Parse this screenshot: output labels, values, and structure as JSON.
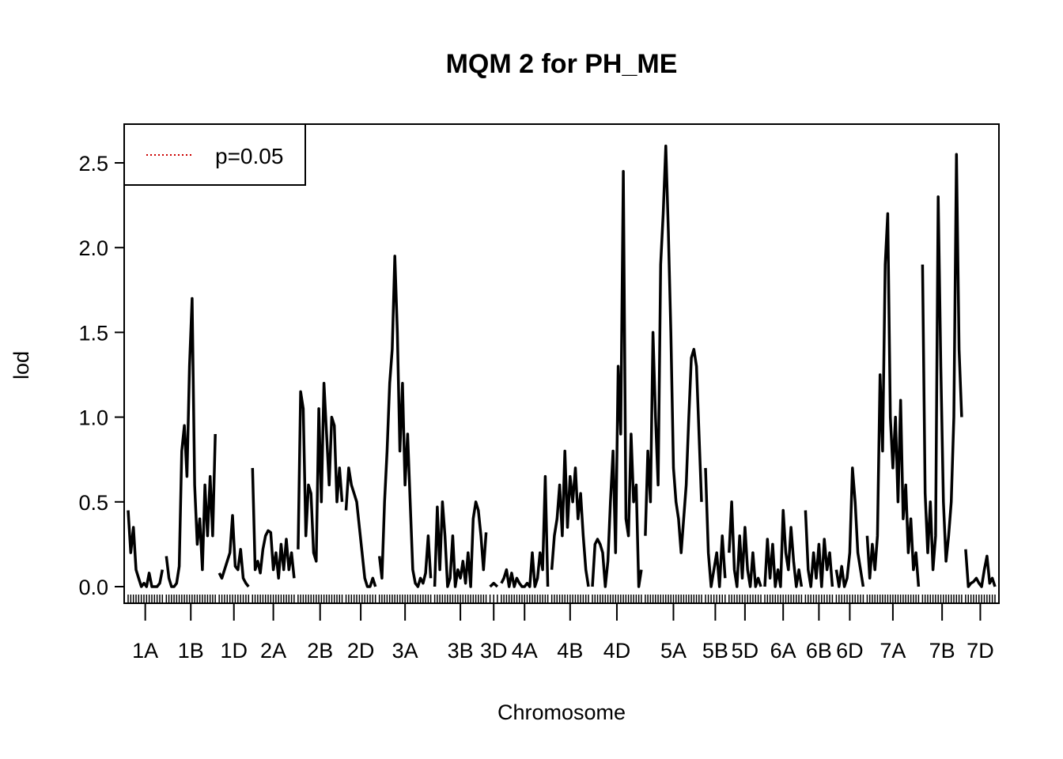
{
  "chart_data": {
    "type": "line",
    "title": "MQM 2 for PH_ME",
    "xlabel": "Chromosome",
    "ylabel": "lod",
    "ylim": [
      0,
      2.6
    ],
    "yticks": [
      "0.0",
      "0.5",
      "1.0",
      "1.5",
      "2.0",
      "2.5"
    ],
    "legend": {
      "placement": "top-left",
      "entries": [
        {
          "label": "p=0.05",
          "color": "#cc0000",
          "style": "dotted"
        }
      ]
    },
    "colors": {
      "line": "#000000",
      "threshold": "#cc0000"
    },
    "chromosomes": [
      "1A",
      "1B",
      "1D",
      "2A",
      "2B",
      "2D",
      "3A",
      "3B",
      "3D",
      "4A",
      "4B",
      "4D",
      "5A",
      "5B",
      "5D",
      "6A",
      "6B",
      "6D",
      "7A",
      "7B",
      "7D"
    ],
    "series": [
      {
        "chr": "1A",
        "values": [
          0.45,
          0.2,
          0.35,
          0.1,
          0.05,
          0.0,
          0.02,
          0.0,
          0.08,
          0.0,
          0.0,
          0.0,
          0.02,
          0.1
        ]
      },
      {
        "chr": "1B",
        "values": [
          0.18,
          0.05,
          0.0,
          0.0,
          0.02,
          0.12,
          0.8,
          0.95,
          0.65,
          1.3,
          1.7,
          0.6,
          0.25,
          0.4,
          0.1,
          0.6,
          0.3,
          0.65,
          0.3,
          0.9
        ]
      },
      {
        "chr": "1D",
        "values": [
          0.08,
          0.05,
          0.1,
          0.15,
          0.2,
          0.42,
          0.12,
          0.1,
          0.22,
          0.05,
          0.02,
          0.0
        ]
      },
      {
        "chr": "2A",
        "values": [
          0.7,
          0.1,
          0.15,
          0.08,
          0.22,
          0.3,
          0.33,
          0.32,
          0.1,
          0.2,
          0.05,
          0.25,
          0.1,
          0.28,
          0.1,
          0.2,
          0.05
        ]
      },
      {
        "chr": "2B",
        "values": [
          0.22,
          1.15,
          1.05,
          0.3,
          0.6,
          0.55,
          0.2,
          0.15,
          1.05,
          0.5,
          1.2,
          0.9,
          0.6,
          1.0,
          0.95,
          0.5,
          0.7,
          0.5
        ]
      },
      {
        "chr": "2D",
        "values": [
          0.45,
          0.7,
          0.6,
          0.55,
          0.5,
          0.35,
          0.2,
          0.05,
          0.0,
          0.0,
          0.05,
          0.0
        ]
      },
      {
        "chr": "3A",
        "values": [
          0.18,
          0.05,
          0.5,
          0.8,
          1.2,
          1.4,
          1.95,
          1.5,
          0.8,
          1.2,
          0.6,
          0.9,
          0.5,
          0.1,
          0.02,
          0.0,
          0.05,
          0.02,
          0.08,
          0.3,
          0.05
        ]
      },
      {
        "chr": "3B",
        "values": [
          0.0,
          0.47,
          0.1,
          0.5,
          0.3,
          0.0,
          0.05,
          0.3,
          0.0,
          0.1,
          0.05,
          0.15,
          0.02,
          0.2,
          0.0,
          0.4,
          0.5,
          0.45,
          0.3,
          0.1,
          0.32
        ]
      },
      {
        "chr": "3D",
        "values": [
          0.0,
          0.02,
          0.0
        ]
      },
      {
        "chr": "4A",
        "values": [
          0.02,
          0.05,
          0.1,
          0.0,
          0.08,
          0.0,
          0.05,
          0.02,
          0.0,
          0.0,
          0.02,
          0.0,
          0.2,
          0.0,
          0.05,
          0.2,
          0.1,
          0.65,
          0.0
        ]
      },
      {
        "chr": "4B",
        "values": [
          0.1,
          0.3,
          0.4,
          0.6,
          0.3,
          0.8,
          0.35,
          0.65,
          0.5,
          0.7,
          0.4,
          0.55,
          0.3,
          0.1,
          0.0
        ]
      },
      {
        "chr": "4D",
        "values": [
          0.0,
          0.25,
          0.28,
          0.25,
          0.2,
          0.0,
          0.15,
          0.5,
          0.8,
          0.2,
          1.3,
          0.9,
          2.45,
          0.4,
          0.3,
          0.9,
          0.5,
          0.6,
          0.0,
          0.1
        ]
      },
      {
        "chr": "5A",
        "values": [
          0.3,
          0.8,
          0.5,
          1.5,
          1.0,
          0.6,
          1.9,
          2.2,
          2.6,
          2.1,
          1.5,
          0.7,
          0.5,
          0.4,
          0.2,
          0.4,
          0.6,
          1.0,
          1.35,
          1.4,
          1.3,
          0.9,
          0.5
        ]
      },
      {
        "chr": "5B",
        "values": [
          0.7,
          0.2,
          0.0,
          0.1,
          0.2,
          0.0,
          0.3,
          0.05
        ]
      },
      {
        "chr": "5D",
        "values": [
          0.2,
          0.5,
          0.1,
          0.0,
          0.3,
          0.05,
          0.35,
          0.1,
          0.0,
          0.2,
          0.0,
          0.05,
          0.0
        ]
      },
      {
        "chr": "6A",
        "values": [
          0.0,
          0.28,
          0.05,
          0.25,
          0.0,
          0.1,
          0.0,
          0.45,
          0.2,
          0.1,
          0.35,
          0.15,
          0.0,
          0.1,
          0.0
        ]
      },
      {
        "chr": "6B",
        "values": [
          0.45,
          0.1,
          0.0,
          0.2,
          0.05,
          0.25,
          0.0,
          0.28,
          0.1,
          0.2,
          0.0
        ]
      },
      {
        "chr": "6D",
        "values": [
          0.1,
          0.0,
          0.12,
          0.0,
          0.05,
          0.2,
          0.7,
          0.5,
          0.2,
          0.1,
          0.0
        ]
      },
      {
        "chr": "7A",
        "values": [
          0.3,
          0.05,
          0.25,
          0.1,
          0.3,
          1.25,
          0.8,
          1.9,
          2.2,
          1.0,
          0.7,
          1.0,
          0.5,
          1.1,
          0.4,
          0.6,
          0.2,
          0.4,
          0.1,
          0.2,
          0.0
        ]
      },
      {
        "chr": "7B",
        "values": [
          1.9,
          0.55,
          0.2,
          0.5,
          0.1,
          0.3,
          2.3,
          1.3,
          0.5,
          0.15,
          0.3,
          0.5,
          1.0,
          2.55,
          1.4,
          1.0
        ]
      },
      {
        "chr": "7D",
        "values": [
          0.22,
          0.0,
          0.02,
          0.03,
          0.05,
          0.02,
          0.0,
          0.1,
          0.18,
          0.02,
          0.05,
          0.0
        ]
      }
    ]
  }
}
